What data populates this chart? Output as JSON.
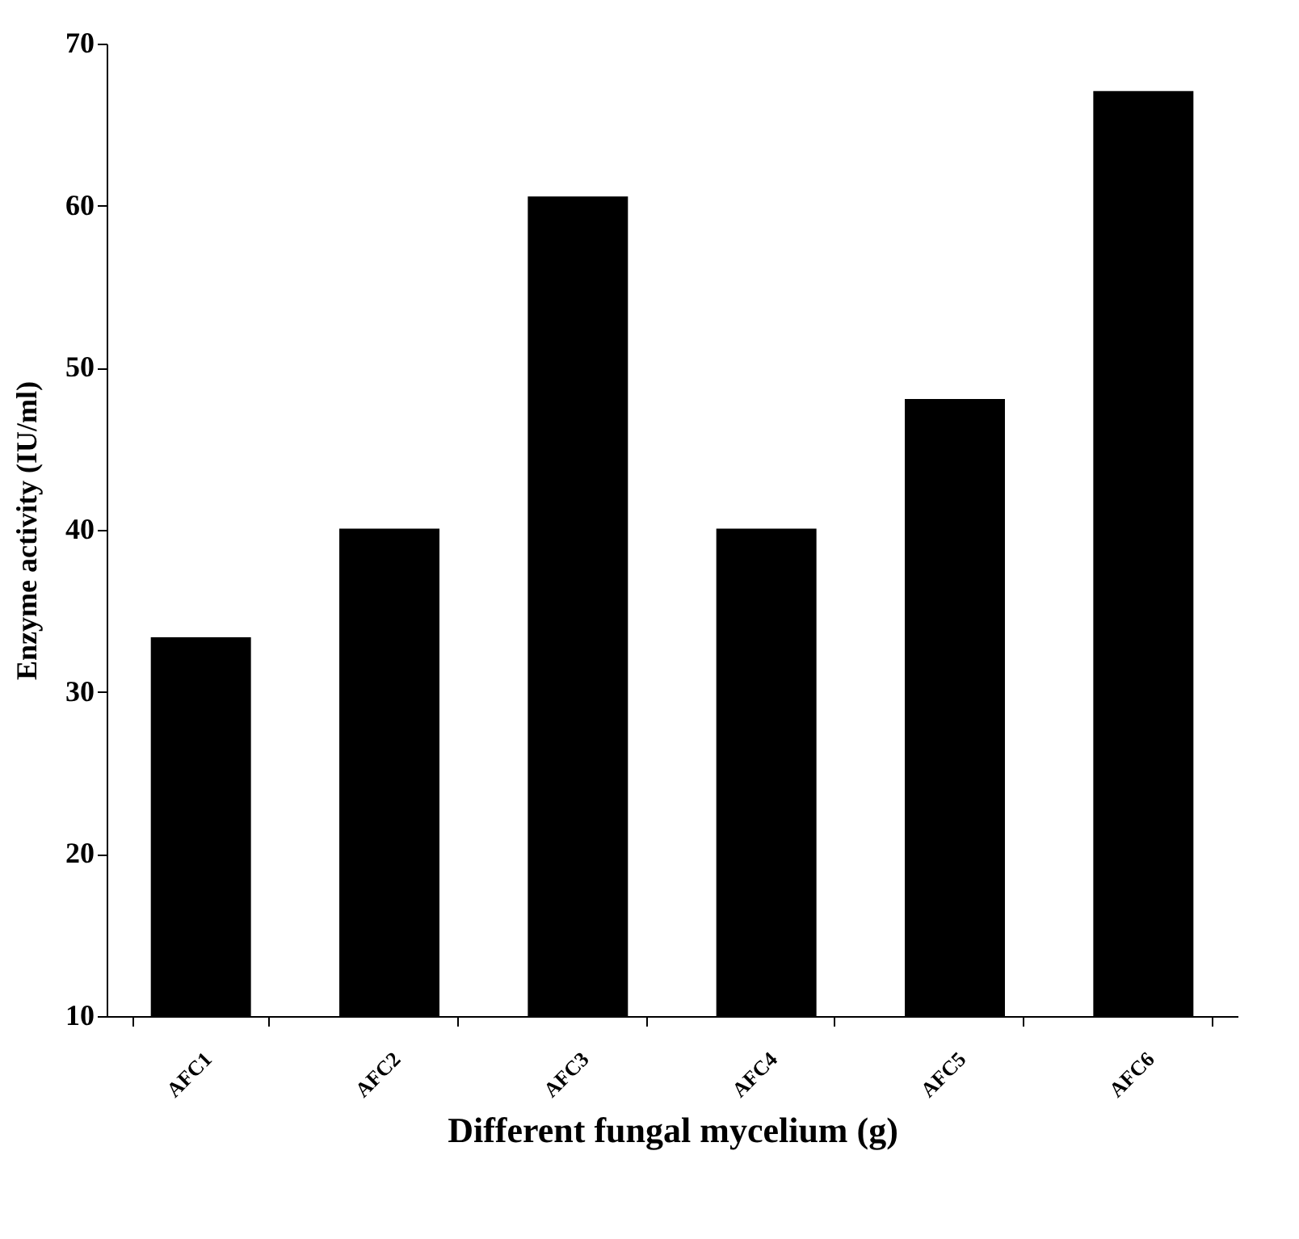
{
  "chart_data": {
    "type": "bar",
    "xlabel": "Different fungal mycelium (g)",
    "ylabel": "Enzyme activity (IU/ml)",
    "categories": [
      "AFC1",
      "AFC2",
      "AFC3",
      "AFC4",
      "AFC5",
      "AFC6"
    ],
    "values": [
      33.3,
      40,
      60.5,
      40,
      48,
      67
    ],
    "color": "#000000",
    "ylim": [
      10,
      70
    ],
    "yticks": [
      10,
      20,
      30,
      40,
      50,
      60,
      70
    ],
    "grid": false
  }
}
